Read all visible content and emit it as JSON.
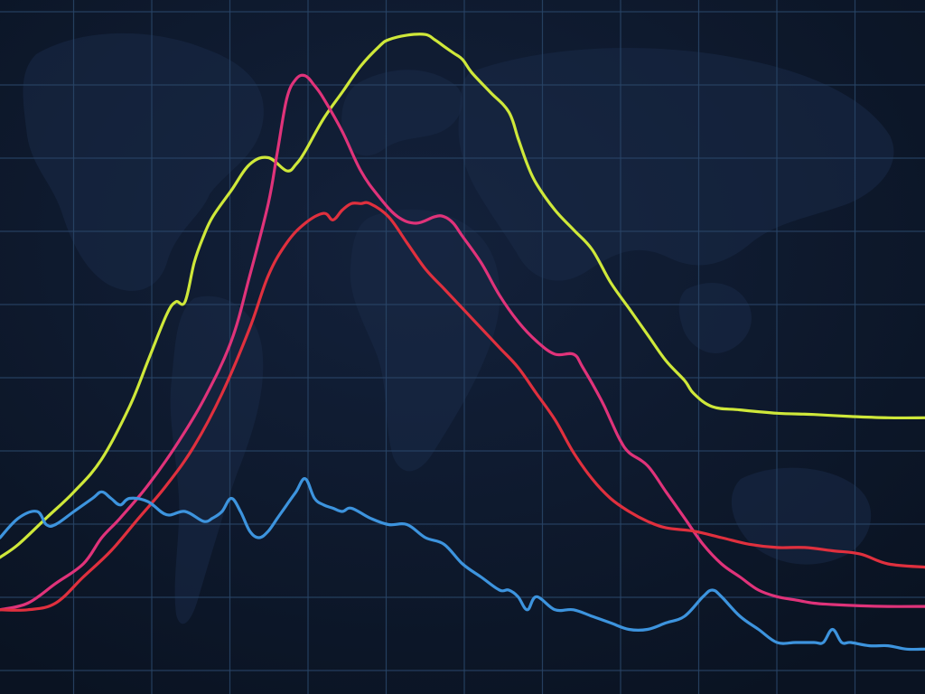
{
  "colors": {
    "background": "#0b1526",
    "background_gradient_top": "#13213b",
    "grid": "#2a4668",
    "land": "#1a2a47"
  },
  "chart_data": {
    "type": "line",
    "title": "",
    "xlabel": "",
    "ylabel": "",
    "grid": true,
    "legend": "none",
    "background_icon": "world-map-icon",
    "grid_columns": 12,
    "grid_rows": 9,
    "xlim": [
      0,
      100
    ],
    "ylim": [
      0,
      100
    ],
    "series": [
      {
        "color": "#cfe83a",
        "x": [
          0,
          2,
          5,
          8,
          11,
          14,
          16,
          18,
          19,
          20,
          21,
          22,
          23,
          25,
          27,
          29,
          31,
          32,
          33,
          35,
          37,
          39,
          41,
          42,
          44,
          46,
          47,
          48,
          49,
          50,
          51,
          53,
          55,
          56,
          57,
          58,
          60,
          62,
          64,
          66,
          68,
          70,
          72,
          74,
          75,
          77,
          80,
          84,
          88,
          92,
          96,
          100
        ],
        "y": [
          17,
          19,
          23,
          27,
          32,
          40,
          47,
          54,
          56,
          56,
          62,
          66,
          69,
          73,
          77,
          78,
          76,
          77,
          79,
          84,
          88,
          92,
          95,
          96,
          96.7,
          96.8,
          96,
          95,
          94,
          93,
          91,
          88,
          85,
          81,
          77,
          74,
          70,
          67,
          64,
          59,
          55,
          51,
          47,
          44,
          42,
          40,
          39.5,
          39,
          38.8,
          38.5,
          38.3,
          38.3
        ]
      },
      {
        "color": "#e0337a",
        "x": [
          0,
          3,
          6,
          9,
          11,
          13,
          16,
          19,
          22,
          25,
          27,
          29,
          30,
          31,
          32,
          33,
          34,
          35,
          37,
          39,
          41,
          43,
          45,
          47,
          48,
          49,
          50,
          52,
          54,
          56,
          58,
          60,
          62,
          63,
          65,
          66,
          67,
          68,
          70,
          72,
          74,
          76,
          78,
          80,
          82,
          84,
          86,
          88,
          90,
          93,
          96,
          100
        ],
        "y": [
          9,
          10,
          13,
          16,
          20,
          23,
          28,
          34,
          41,
          50,
          60,
          71,
          79,
          87,
          90,
          90.5,
          89,
          87,
          82,
          76,
          72,
          69,
          68,
          69,
          69,
          68,
          66,
          62,
          57,
          53,
          50,
          48,
          48,
          46,
          41,
          38,
          35,
          33,
          31,
          27,
          23,
          19,
          16,
          14,
          12,
          11,
          10.5,
          10,
          9.8,
          9.6,
          9.5,
          9.5
        ]
      },
      {
        "color": "#e0303e",
        "x": [
          0,
          3,
          6,
          9,
          12,
          15,
          18,
          21,
          24,
          27,
          29,
          31,
          33,
          35,
          36,
          37,
          38,
          39,
          40,
          42,
          44,
          46,
          48,
          50,
          52,
          54,
          56,
          58,
          60,
          62,
          64,
          66,
          68,
          70,
          72,
          75,
          78,
          81,
          84,
          87,
          90,
          93,
          96,
          100
        ],
        "y": [
          9,
          9,
          10,
          14,
          18,
          23,
          28,
          34,
          42,
          52,
          60,
          65,
          68,
          69.5,
          68.5,
          70,
          71,
          71,
          71,
          69,
          65,
          61,
          58,
          55,
          52,
          49,
          46,
          42,
          38,
          33,
          29,
          26,
          24,
          22.5,
          21.5,
          21,
          20,
          19,
          18.5,
          18.5,
          18,
          17.5,
          16,
          15.5
        ]
      },
      {
        "color": "#3d94de",
        "x": [
          0,
          2,
          4,
          5,
          6,
          8,
          10,
          11,
          12,
          13,
          14,
          16,
          18,
          20,
          22,
          23,
          24,
          25,
          26,
          27,
          28,
          29,
          30,
          31,
          32,
          33,
          34,
          35,
          36,
          37,
          38,
          40,
          42,
          44,
          46,
          48,
          50,
          52,
          54,
          55,
          56,
          57,
          58,
          60,
          62,
          64,
          66,
          68,
          70,
          72,
          74,
          76,
          77,
          78,
          80,
          82,
          84,
          86,
          88,
          89,
          90,
          91,
          92,
          94,
          96,
          98,
          100
        ],
        "y": [
          20,
          23,
          24,
          22,
          22,
          24,
          26,
          27,
          26,
          25,
          26,
          25.5,
          23.5,
          24,
          22.5,
          23,
          24,
          26,
          24,
          21,
          20,
          21,
          23,
          25,
          27,
          29,
          26,
          25,
          24.5,
          24,
          24.5,
          23,
          22,
          22,
          20,
          19,
          16,
          14,
          12,
          12,
          11,
          9,
          11,
          9,
          9,
          8,
          7,
          6,
          6,
          7,
          8,
          11,
          12,
          11,
          8,
          6,
          4,
          4,
          4,
          4,
          6,
          4,
          4,
          3.5,
          3.5,
          3,
          3
        ]
      }
    ]
  }
}
